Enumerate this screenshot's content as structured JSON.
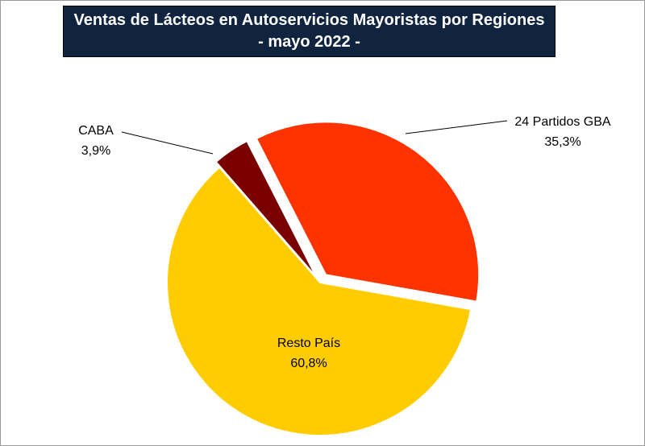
{
  "chart_data": {
    "type": "pie",
    "title": "Ventas de Lácteos en Autoservicios Mayoristas por Regiones",
    "subtitle": "- mayo 2022 -",
    "slices": [
      {
        "label": "24 Partidos GBA",
        "value": 35.3,
        "value_label": "35,3%",
        "color": "#ff3300"
      },
      {
        "label": "Resto País",
        "value": 60.8,
        "value_label": "60,8%",
        "color": "#ffcc00"
      },
      {
        "label": "CABA",
        "value": 3.9,
        "value_label": "3,9%",
        "color": "#7a0000"
      }
    ],
    "legend": "none"
  }
}
